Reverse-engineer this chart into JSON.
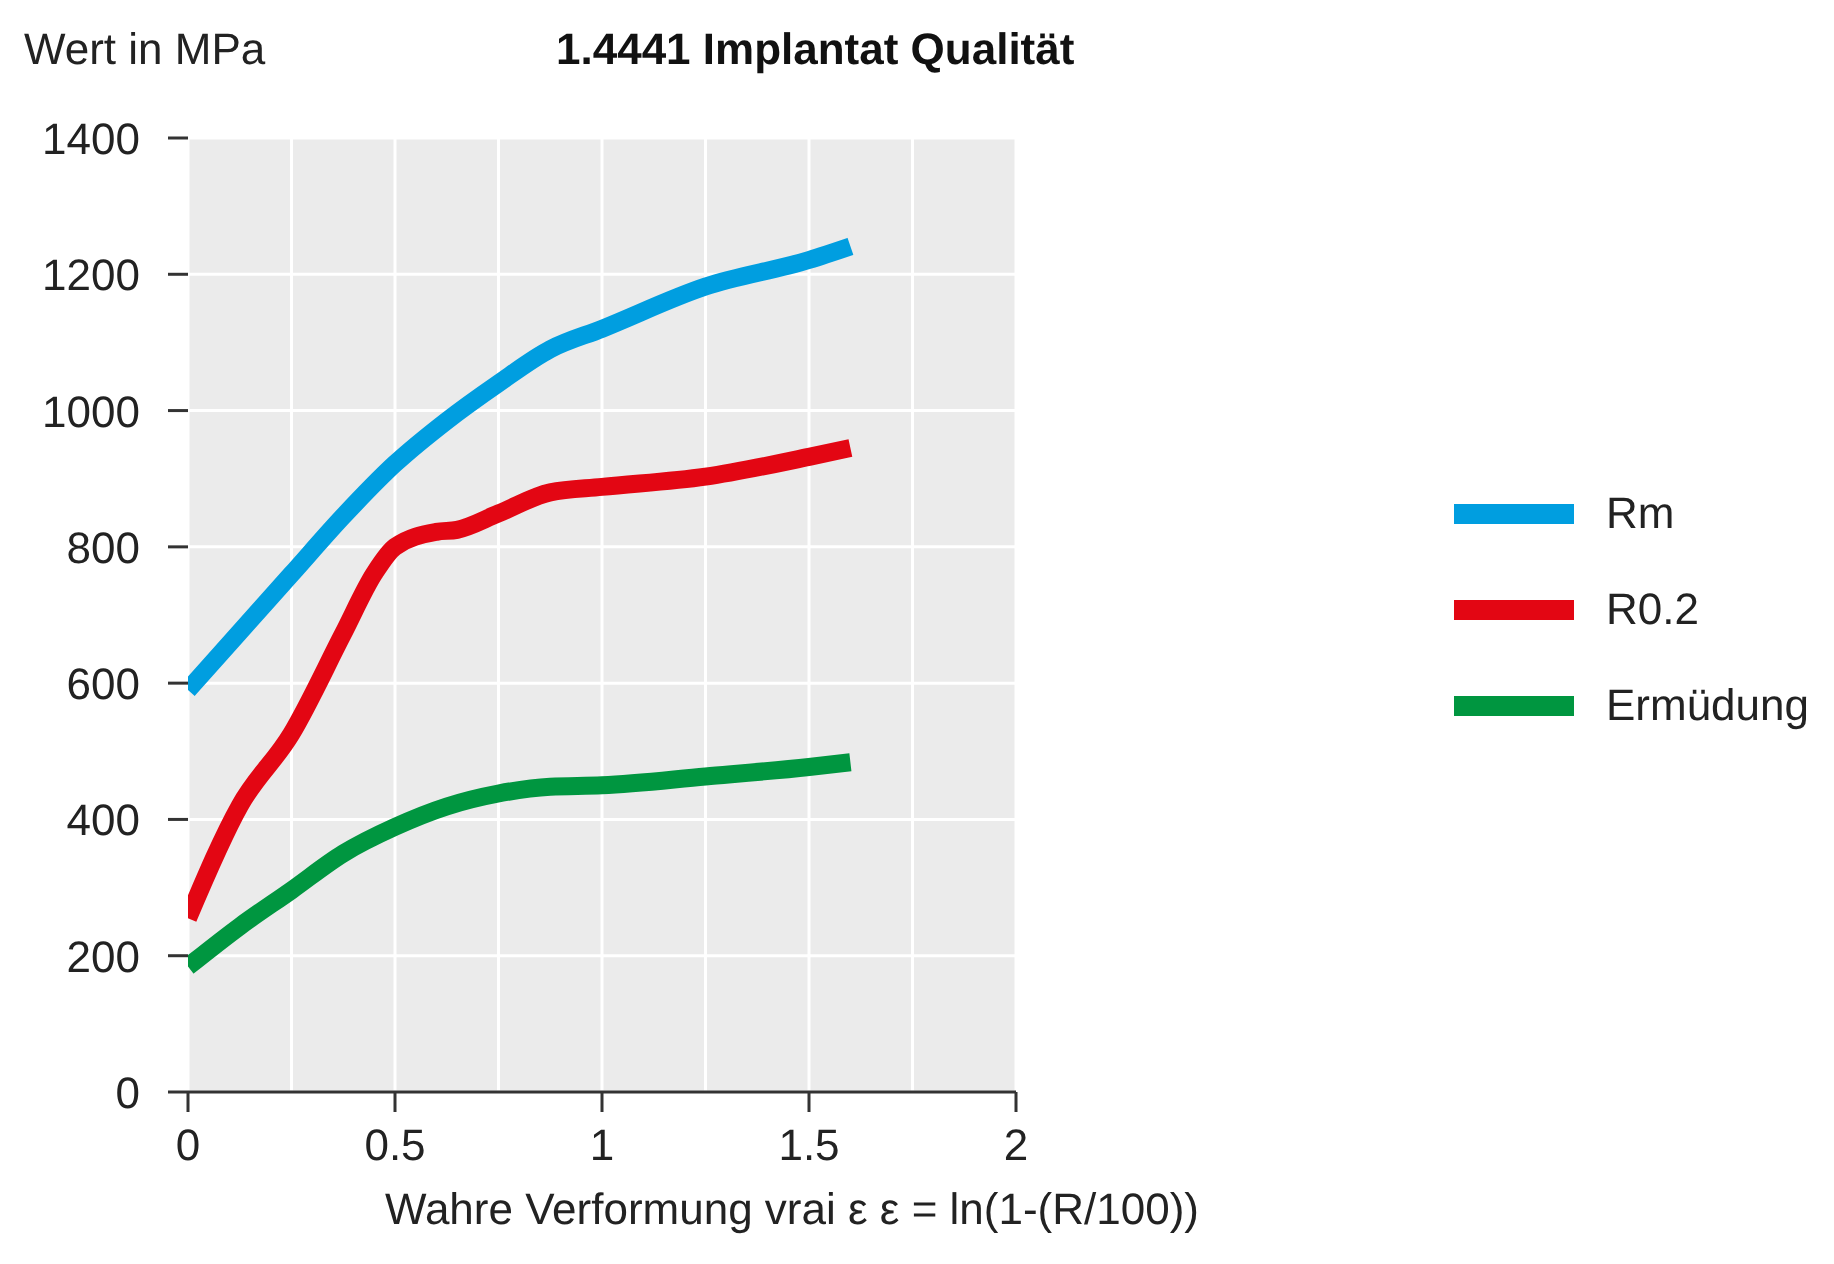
{
  "chart_data": {
    "type": "line",
    "title": "1.4441 Implantat Qualität",
    "ylabel": "Wert in MPa",
    "xlabel": "Wahre Verformung vrai ε  ε = ln(1-(R/100))",
    "x": [
      0,
      0.125,
      0.25,
      0.375,
      0.5,
      0.625,
      0.75,
      0.875,
      1,
      1.25,
      1.5,
      1.6
    ],
    "series": [
      {
        "name": "Rm",
        "color": "#009ee0",
        "values": [
          590,
          675,
          760,
          845,
          922,
          985,
          1040,
          1090,
          1120,
          1182,
          1221,
          1241
        ]
      },
      {
        "name": "R0.2",
        "color": "#e30613",
        "x": [
          0,
          0.125,
          0.25,
          0.375,
          0.45,
          0.5,
          0.6,
          0.65,
          0.75,
          0.875,
          1,
          1.25,
          1.5,
          1.6
        ],
        "values": [
          255,
          420,
          526,
          673,
          761,
          800,
          822,
          825,
          849,
          880,
          888,
          903,
          932,
          945
        ]
      },
      {
        "name": "Ermüdung",
        "color": "#009640",
        "values": [
          184,
          243,
          296,
          350,
          389,
          419,
          438,
          448,
          450,
          463,
          477,
          484
        ]
      }
    ],
    "xlim": [
      0,
      2
    ],
    "xticks": [
      0,
      {
        "value": 0.25,
        "label": null
      },
      0.5,
      {
        "value": 0.75,
        "label": null
      },
      1,
      {
        "value": 1.25,
        "label": null
      },
      1.5,
      {
        "value": 1.75,
        "label": null
      },
      2
    ],
    "ylim": [
      0,
      1400
    ],
    "yticks": [
      0,
      200,
      400,
      600,
      800,
      1000,
      1200,
      1400
    ],
    "grid": true,
    "legend": "right",
    "marker": "none",
    "line_style": "solid"
  }
}
